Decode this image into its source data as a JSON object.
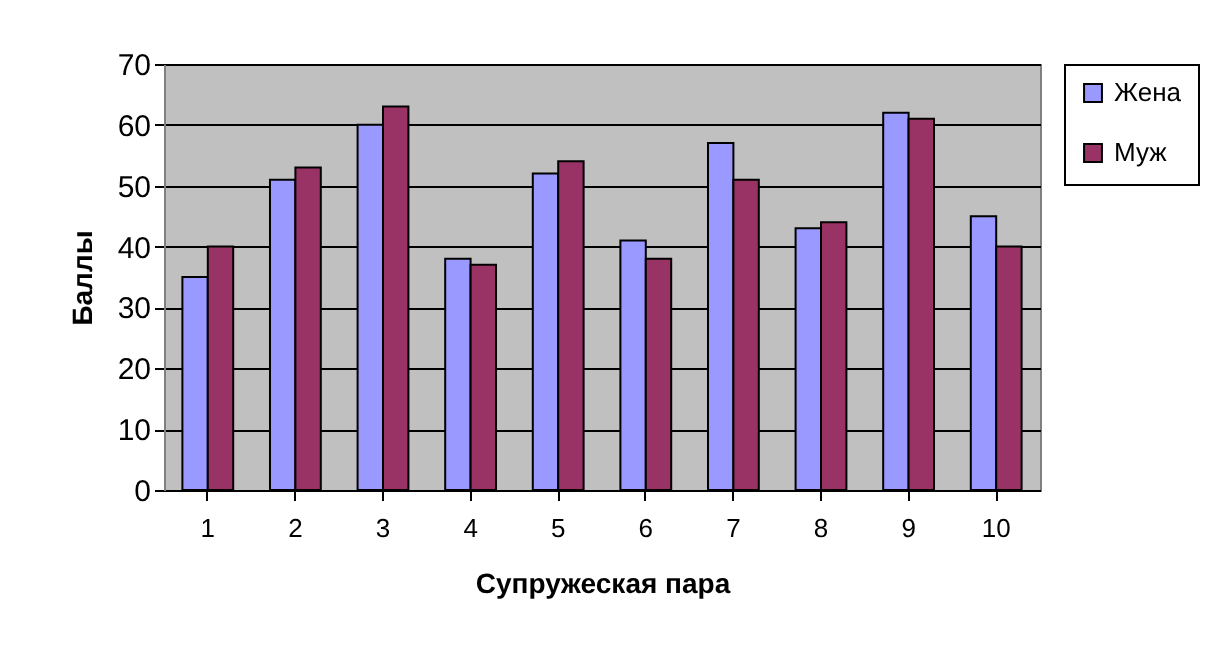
{
  "chart_data": {
    "type": "bar",
    "xlabel": "Супружеская пара",
    "ylabel": "Баллы",
    "categories": [
      "1",
      "2",
      "3",
      "4",
      "5",
      "6",
      "7",
      "8",
      "9",
      "10"
    ],
    "series": [
      {
        "name": "Жена",
        "color": "#9999ff",
        "values": [
          35,
          51,
          60,
          38,
          52,
          41,
          57,
          43,
          62,
          45
        ]
      },
      {
        "name": "Муж",
        "color": "#993366",
        "values": [
          40,
          53,
          63,
          37,
          54,
          38,
          51,
          44,
          61,
          40
        ]
      }
    ],
    "ylim": [
      0,
      70
    ],
    "yticks": [
      0,
      10,
      20,
      30,
      40,
      50,
      60,
      70
    ],
    "grid": "y",
    "legend": "right"
  }
}
